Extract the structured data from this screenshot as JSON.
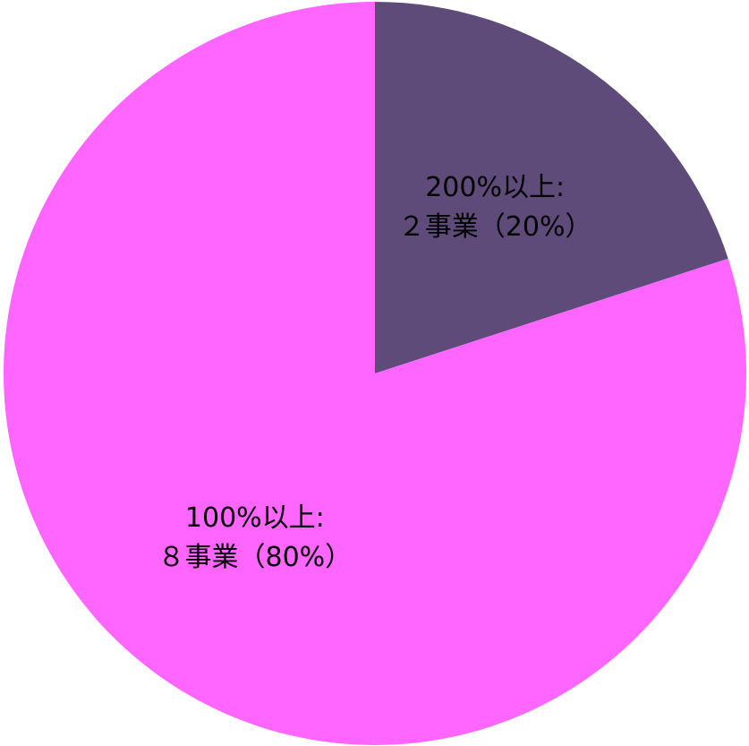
{
  "chart_data": {
    "type": "pie",
    "categories": [
      "200%以上:",
      "100%以上:"
    ],
    "values": [
      20,
      80
    ],
    "value_labels": [
      "２事業（20%）",
      "８事業（80%）"
    ],
    "colors": [
      "#5f4b7a",
      "#ff66ff"
    ]
  }
}
